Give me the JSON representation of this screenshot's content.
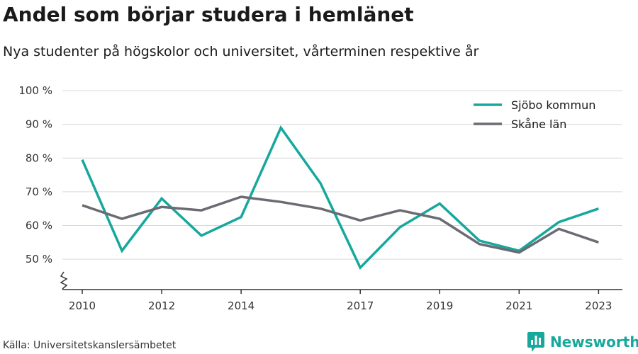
{
  "header": {
    "title": "Andel som börjar studera i hemlänet",
    "subtitle": "Nya studenter på högskolor och universitet, vårterminen respektive år"
  },
  "footer": {
    "source": "Källa: Universitetskanslersämbetet",
    "brand": "Newsworthy",
    "brand_icon": "bar-chart-logo-icon"
  },
  "colors": {
    "accent": "#16a89c",
    "series_primary": "#16a89c",
    "series_secondary": "#6b6b73",
    "grid": "#d9d9d9",
    "axis": "#333333"
  },
  "chart_data": {
    "type": "line",
    "title": "Andel som börjar studera i hemlänet",
    "subtitle": "Nya studenter på högskolor och universitet, vårterminen respektive år",
    "x": [
      2010,
      2011,
      2012,
      2013,
      2014,
      2015,
      2016,
      2017,
      2018,
      2019,
      2020,
      2021,
      2022,
      2023
    ],
    "x_tick_values": [
      2010,
      2012,
      2014,
      2017,
      2019,
      2021,
      2023
    ],
    "x_tick_labels": [
      "2010",
      "2012",
      "2014",
      "2017",
      "2019",
      "2021",
      "2023"
    ],
    "xlim": [
      2009.5,
      2023.6
    ],
    "y_tick_values": [
      50,
      60,
      70,
      80,
      90,
      100
    ],
    "y_tick_labels": [
      "50 %",
      "60 %",
      "70 %",
      "80 %",
      "90 %",
      "100 %"
    ],
    "ylim": [
      41,
      100
    ],
    "y_axis_break": true,
    "grid": true,
    "legend_position": "top-right",
    "series": [
      {
        "name": "Sjöbo kommun",
        "color": "#16a89c",
        "values": [
          79.5,
          52.5,
          68.0,
          57.0,
          62.5,
          89.0,
          72.5,
          47.5,
          59.5,
          66.5,
          55.5,
          52.5,
          61.0,
          65.0
        ]
      },
      {
        "name": "Skåne län",
        "color": "#6b6b73",
        "values": [
          66.0,
          62.0,
          65.5,
          64.5,
          68.5,
          67.0,
          65.0,
          61.5,
          64.5,
          62.0,
          54.5,
          52.0,
          59.0,
          55.0
        ]
      }
    ]
  }
}
